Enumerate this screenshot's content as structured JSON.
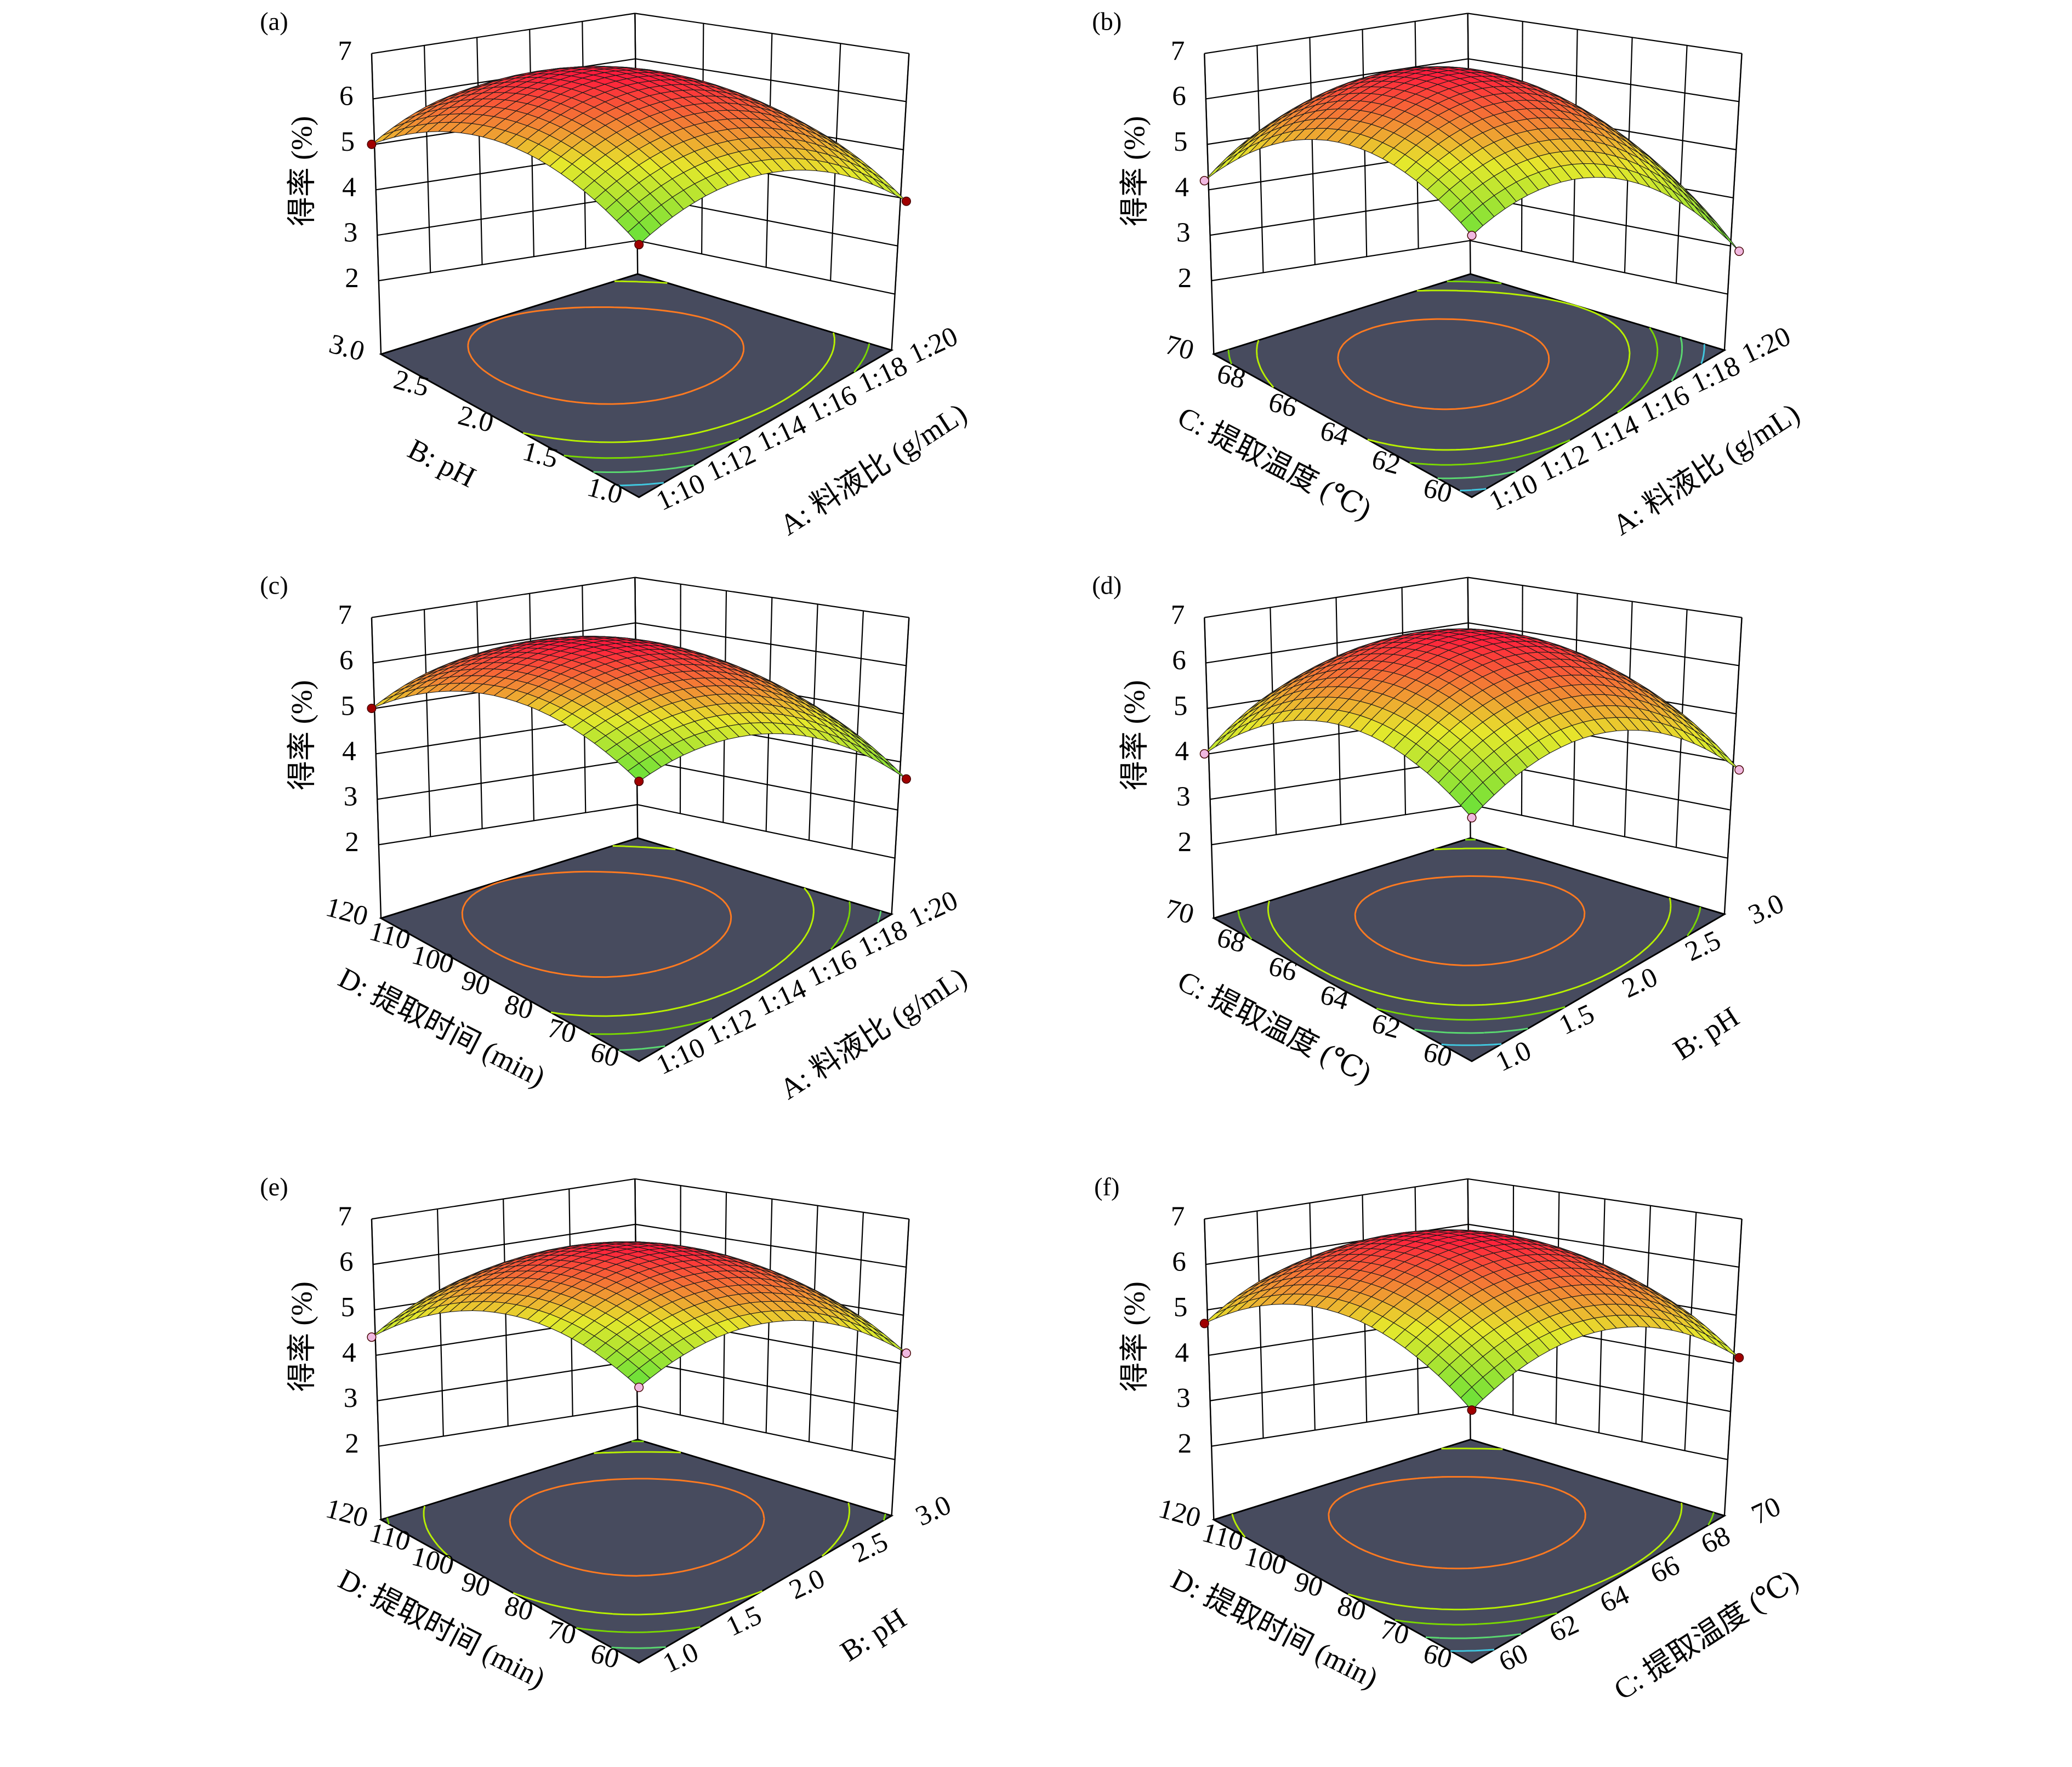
{
  "colors": {
    "floor": "#474b5e",
    "wall_line": "#000000",
    "surface_low": "#5fe03a",
    "surface_mid": "#e6e82c",
    "surface_high": "#ff1c3c",
    "contours": [
      "#ff7a20",
      "#b8f000",
      "#7ad800",
      "#5ad870",
      "#40c8e0"
    ]
  },
  "chart_data": [
    {
      "type": "surface3d",
      "label": "(a)",
      "marker_color": "#a00000",
      "z_axis": {
        "title": "得率 (%)",
        "ticks": [
          "2",
          "3",
          "4",
          "5",
          "6",
          "7"
        ],
        "range": [
          2,
          7
        ]
      },
      "left_axis": {
        "title": "B: pH",
        "ticks": [
          "3.0",
          "2.5",
          "2.0",
          "1.5",
          "1.0"
        ]
      },
      "right_axis": {
        "title": "A: 料液比 (g/mL)",
        "ticks": [
          "1:10",
          "1:12",
          "1:14",
          "1:16",
          "1:18",
          "1:20"
        ]
      },
      "response": {
        "center": 6.4,
        "front": 3.0,
        "left": 5.0,
        "right": 4.1,
        "back": 4.6
      }
    },
    {
      "type": "surface3d",
      "label": "(b)",
      "marker_color": "#f0b8e0",
      "z_axis": {
        "title": "得率 (%)",
        "ticks": [
          "2",
          "3",
          "4",
          "5",
          "6",
          "7"
        ],
        "range": [
          2,
          7
        ]
      },
      "left_axis": {
        "title": "C: 提取温度 (℃)",
        "ticks": [
          "70",
          "68",
          "66",
          "64",
          "62",
          "60"
        ]
      },
      "right_axis": {
        "title": "A: 料液比 (g/mL)",
        "ticks": [
          "1:10",
          "1:12",
          "1:14",
          "1:16",
          "1:18",
          "1:20"
        ]
      },
      "response": {
        "center": 6.5,
        "front": 3.2,
        "left": 4.2,
        "right": 3.0,
        "back": 4.0
      }
    },
    {
      "type": "surface3d",
      "label": "(c)",
      "marker_color": "#a00000",
      "z_axis": {
        "title": "得率 (%)",
        "ticks": [
          "2",
          "3",
          "4",
          "5",
          "6",
          "7"
        ],
        "range": [
          2,
          7
        ]
      },
      "left_axis": {
        "title": "D: 提取时间 (min)",
        "ticks": [
          "120",
          "110",
          "100",
          "90",
          "80",
          "70",
          "60"
        ]
      },
      "right_axis": {
        "title": "A: 料液比 (g/mL)",
        "ticks": [
          "1:10",
          "1:12",
          "1:14",
          "1:16",
          "1:18",
          "1:20"
        ]
      },
      "response": {
        "center": 6.3,
        "front": 3.6,
        "left": 5.0,
        "right": 3.8,
        "back": 4.6
      }
    },
    {
      "type": "surface3d",
      "label": "(d)",
      "marker_color": "#f0b8e0",
      "z_axis": {
        "title": "得率 (%)",
        "ticks": [
          "2",
          "3",
          "4",
          "5",
          "6",
          "7"
        ],
        "range": [
          2,
          7
        ]
      },
      "left_axis": {
        "title": "C: 提取温度 (℃)",
        "ticks": [
          "70",
          "68",
          "66",
          "64",
          "62",
          "60"
        ]
      },
      "right_axis": {
        "title": "B: pH",
        "ticks": [
          "1.0",
          "1.5",
          "2.0",
          "2.5",
          "3.0"
        ]
      },
      "response": {
        "center": 6.5,
        "front": 2.8,
        "left": 4.0,
        "right": 4.0,
        "back": 4.4
      }
    },
    {
      "type": "surface3d",
      "label": "(e)",
      "marker_color": "#f0b8e0",
      "z_axis": {
        "title": "得率 (%)",
        "ticks": [
          "2",
          "3",
          "4",
          "5",
          "6",
          "7"
        ],
        "range": [
          2,
          7
        ]
      },
      "left_axis": {
        "title": "D: 提取时间 (min)",
        "ticks": [
          "120",
          "110",
          "100",
          "90",
          "80",
          "70",
          "60"
        ]
      },
      "right_axis": {
        "title": "B: pH",
        "ticks": [
          "1.0",
          "1.5",
          "2.0",
          "2.5",
          "3.0"
        ]
      },
      "response": {
        "center": 6.3,
        "front": 3.5,
        "left": 4.4,
        "right": 4.4,
        "back": 4.4
      }
    },
    {
      "type": "surface3d",
      "label": "(f)",
      "marker_color": "#a00000",
      "z_axis": {
        "title": "得率 (%)",
        "ticks": [
          "2",
          "3",
          "4",
          "5",
          "6",
          "7"
        ],
        "range": [
          2,
          7
        ]
      },
      "left_axis": {
        "title": "D: 提取时间 (min)",
        "ticks": [
          "120",
          "110",
          "100",
          "90",
          "80",
          "70",
          "60"
        ]
      },
      "right_axis": {
        "title": "C: 提取温度 (℃)",
        "ticks": [
          "60",
          "62",
          "64",
          "66",
          "68",
          "70"
        ]
      },
      "response": {
        "center": 6.5,
        "front": 3.0,
        "left": 4.7,
        "right": 4.3,
        "back": 4.5
      }
    }
  ]
}
